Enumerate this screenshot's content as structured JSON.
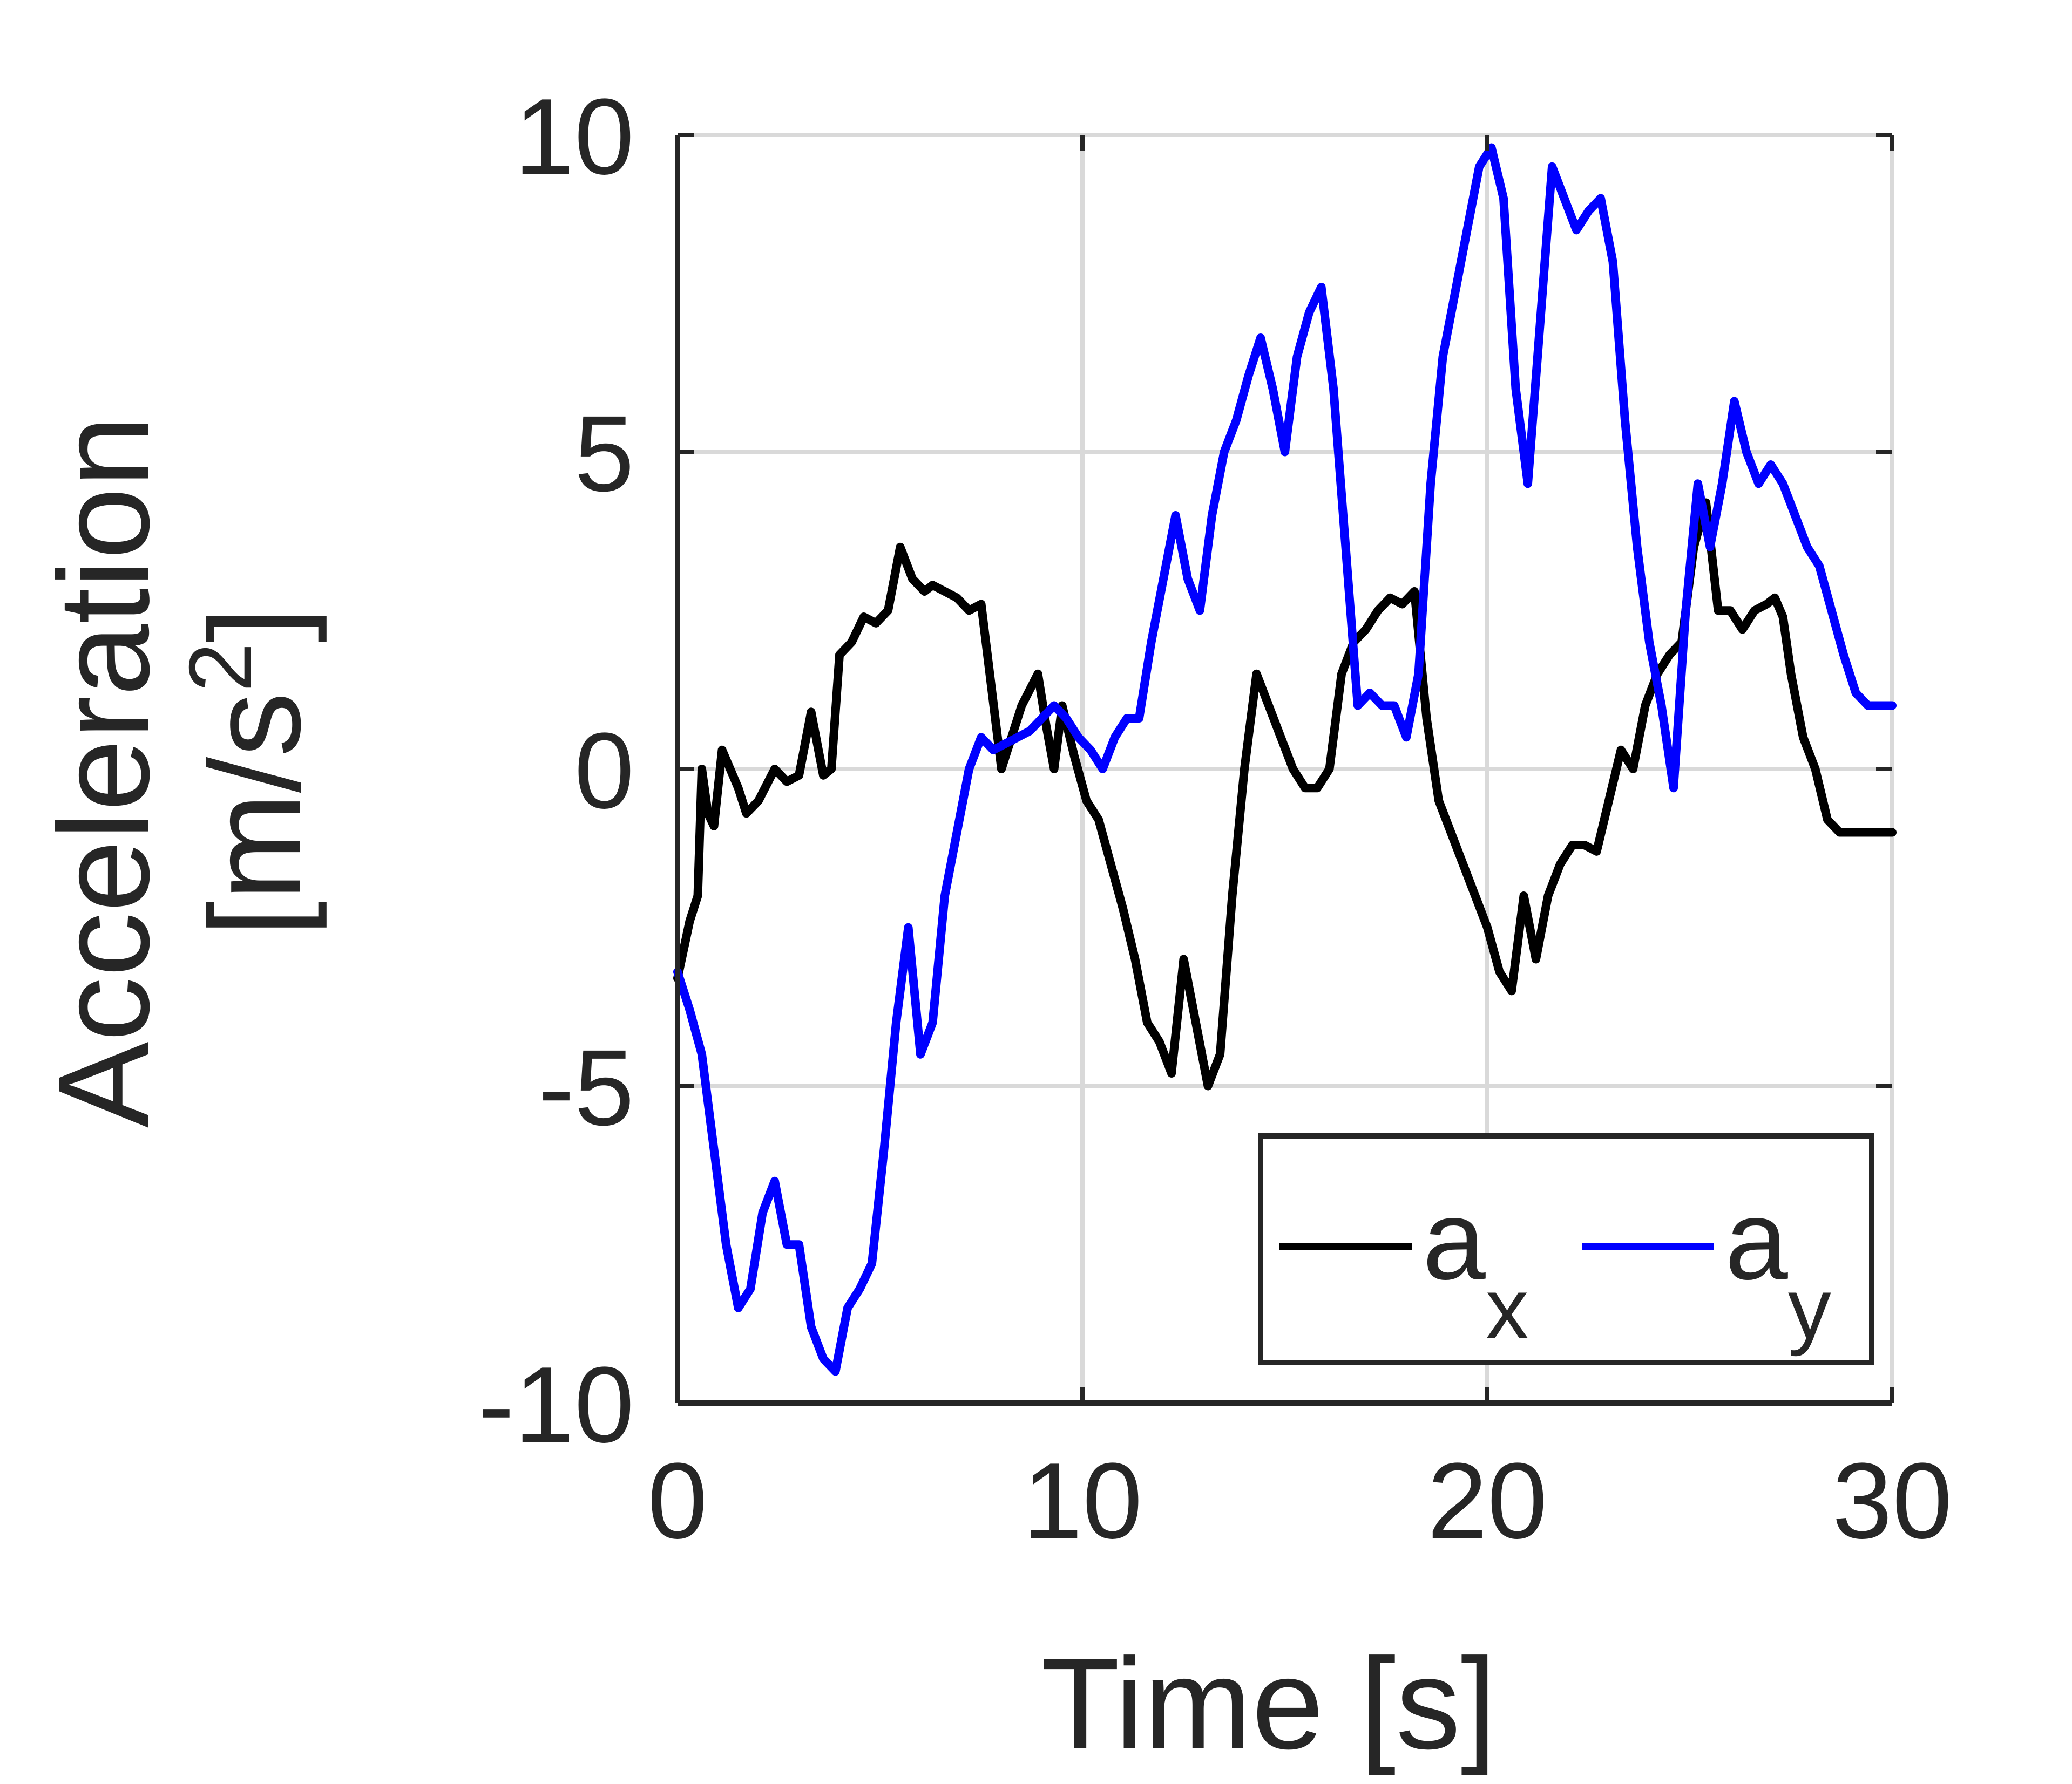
{
  "chart_data": {
    "type": "line",
    "title": "",
    "xlabel": "Time [s]",
    "ylabel_line1": "Acceleration",
    "ylabel_line2_prefix": "[m/s",
    "ylabel_line2_sup": "2",
    "ylabel_line2_suffix": "]",
    "xlim": [
      0,
      30
    ],
    "ylim": [
      -10,
      10
    ],
    "xticks": [
      "0",
      "10",
      "20",
      "30"
    ],
    "yticks": [
      "-10",
      "-5",
      "0",
      "5",
      "10"
    ],
    "grid": true,
    "legend_position": "bottom-right",
    "series": [
      {
        "name_base": "a",
        "name_sub": "x",
        "color": "#000000",
        "x": [
          0.0,
          0.3,
          0.5,
          0.6,
          0.75,
          0.9,
          1.1,
          1.3,
          1.5,
          1.7,
          2.0,
          2.4,
          2.7,
          3.0,
          3.3,
          3.6,
          3.8,
          4.0,
          4.3,
          4.6,
          4.9,
          5.2,
          5.5,
          5.8,
          6.1,
          6.3,
          6.6,
          6.9,
          7.2,
          7.5,
          8.0,
          8.5,
          8.9,
          9.1,
          9.3,
          9.5,
          9.8,
          10.1,
          10.4,
          10.7,
          11.0,
          11.3,
          11.6,
          11.9,
          12.2,
          12.5,
          12.8,
          13.1,
          13.4,
          13.7,
          14.0,
          14.3,
          14.6,
          14.9,
          15.2,
          15.5,
          15.8,
          16.1,
          16.4,
          16.7,
          17.0,
          17.3,
          17.6,
          17.9,
          18.2,
          18.5,
          18.8,
          19.1,
          19.4,
          19.7,
          20.0,
          20.3,
          20.6,
          20.9,
          21.2,
          21.5,
          21.8,
          22.1,
          22.4,
          22.7,
          23.0,
          23.3,
          23.6,
          23.9,
          24.2,
          24.5,
          24.8,
          25.1,
          25.4,
          25.7,
          26.0,
          26.3,
          26.6,
          26.9,
          27.1,
          27.3,
          27.5,
          27.8,
          28.1,
          28.4,
          28.7,
          29.0,
          29.3,
          29.6,
          29.8,
          30.0
        ],
        "y": [
          -3.3,
          -2.4,
          -2.0,
          0.0,
          -0.7,
          -0.9,
          0.3,
          0.0,
          -0.3,
          -0.7,
          -0.5,
          0.0,
          -0.2,
          -0.1,
          0.9,
          -0.1,
          0.0,
          1.8,
          2.0,
          2.4,
          2.3,
          2.5,
          3.5,
          3.0,
          2.8,
          2.9,
          2.8,
          2.7,
          2.5,
          2.6,
          0.0,
          1.0,
          1.5,
          0.7,
          0.0,
          1.0,
          0.2,
          -0.5,
          -0.8,
          -1.5,
          -2.2,
          -3.0,
          -4.0,
          -4.3,
          -4.8,
          -3.0,
          -4.0,
          -5.0,
          -4.5,
          -2.0,
          0.0,
          1.5,
          1.0,
          0.5,
          0.0,
          -0.3,
          -0.3,
          0.0,
          1.5,
          2.0,
          2.2,
          2.5,
          2.7,
          2.6,
          2.8,
          0.8,
          -0.5,
          -1.0,
          -1.5,
          -2.0,
          -2.5,
          -3.2,
          -3.5,
          -2.0,
          -3.0,
          -2.0,
          -1.5,
          -1.2,
          -1.2,
          -1.3,
          -0.5,
          0.3,
          0.0,
          1.0,
          1.5,
          1.8,
          2.0,
          3.5,
          4.2,
          2.5,
          2.5,
          2.2,
          2.5,
          2.6,
          2.7,
          2.4,
          1.5,
          0.5,
          0.0,
          -0.8,
          -1.0,
          -1.0,
          -1.0,
          -1.0,
          -1.0,
          -1.0
        ]
      },
      {
        "name_base": "a",
        "name_sub": "y",
        "color": "#0000ff",
        "x": [
          0.0,
          0.3,
          0.6,
          0.9,
          1.2,
          1.5,
          1.8,
          2.1,
          2.4,
          2.7,
          3.0,
          3.3,
          3.6,
          3.9,
          4.2,
          4.5,
          4.8,
          5.1,
          5.4,
          5.7,
          6.0,
          6.3,
          6.6,
          6.9,
          7.2,
          7.5,
          7.8,
          8.1,
          8.4,
          8.7,
          9.0,
          9.3,
          9.6,
          9.9,
          10.2,
          10.5,
          10.8,
          11.1,
          11.4,
          11.7,
          12.0,
          12.3,
          12.6,
          12.9,
          13.2,
          13.5,
          13.8,
          14.1,
          14.4,
          14.7,
          15.0,
          15.3,
          15.6,
          15.9,
          16.2,
          16.5,
          16.8,
          17.1,
          17.4,
          17.7,
          18.0,
          18.3,
          18.6,
          18.9,
          19.2,
          19.5,
          19.8,
          20.1,
          20.4,
          20.7,
          21.0,
          21.3,
          21.6,
          21.9,
          22.2,
          22.5,
          22.8,
          23.1,
          23.4,
          23.7,
          24.0,
          24.3,
          24.6,
          24.9,
          25.2,
          25.5,
          25.8,
          26.1,
          26.4,
          26.7,
          27.0,
          27.3,
          27.6,
          27.9,
          28.2,
          28.5,
          28.8,
          29.1,
          29.4,
          29.7,
          30.0
        ],
        "y": [
          -3.2,
          -3.8,
          -4.5,
          -6.0,
          -7.5,
          -8.5,
          -8.2,
          -7.0,
          -6.5,
          -7.5,
          -7.5,
          -8.8,
          -9.3,
          -9.5,
          -8.5,
          -8.2,
          -7.8,
          -6.0,
          -4.0,
          -2.5,
          -4.5,
          -4.0,
          -2.0,
          -1.0,
          0.0,
          0.5,
          0.3,
          0.4,
          0.5,
          0.6,
          0.8,
          1.0,
          0.8,
          0.5,
          0.3,
          0.0,
          0.5,
          0.8,
          0.8,
          2.0,
          3.0,
          4.0,
          3.0,
          2.5,
          4.0,
          5.0,
          5.5,
          6.2,
          6.8,
          6.0,
          5.0,
          6.5,
          7.2,
          7.6,
          6.0,
          3.5,
          1.0,
          1.2,
          1.0,
          1.0,
          0.5,
          1.5,
          4.5,
          6.5,
          7.5,
          8.5,
          9.5,
          9.8,
          9.0,
          6.0,
          4.5,
          7.0,
          9.5,
          9.0,
          8.5,
          8.8,
          9.0,
          8.0,
          5.5,
          3.5,
          2.0,
          1.0,
          -0.3,
          2.5,
          4.5,
          3.5,
          4.5,
          5.8,
          5.0,
          4.5,
          4.8,
          4.5,
          4.0,
          3.5,
          3.2,
          2.5,
          1.8,
          1.2,
          1.0,
          1.0,
          1.0
        ]
      }
    ]
  }
}
